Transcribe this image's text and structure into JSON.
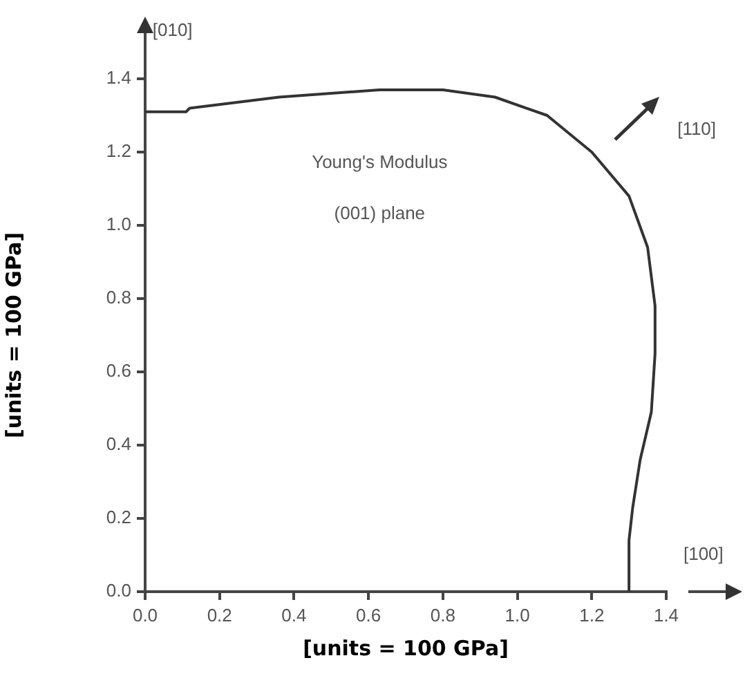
{
  "chart_data": {
    "type": "line",
    "xlabel": "[units = 100 GPa]",
    "ylabel": "[units = 100 GPa]",
    "annotations": [
      "[010]",
      "[110]",
      "[100]",
      "Young's Modulus",
      "(001) plane"
    ],
    "series": [
      {
        "color": "#333333",
        "x": [
          0.0,
          0.11,
          0.12,
          0.36,
          0.63,
          0.8,
          0.94,
          1.08,
          1.2,
          1.3,
          1.35,
          1.37,
          1.37,
          1.36,
          1.33,
          1.31,
          1.3,
          1.3
        ],
        "values": [
          1.31,
          1.31,
          1.32,
          1.35,
          1.37,
          1.37,
          1.35,
          1.3,
          1.2,
          1.08,
          0.94,
          0.78,
          0.65,
          0.49,
          0.36,
          0.23,
          0.14,
          0.0
        ]
      }
    ],
    "xlim": [
      0,
      1.4
    ],
    "xticks": [
      {
        "value": 0,
        "label": "0.0"
      },
      0.2,
      0.4,
      0.6,
      0.8,
      {
        "value": 1,
        "label": "1.0"
      },
      1.2,
      1.4
    ],
    "ylim": [
      0,
      1.4
    ],
    "yticks": [
      {
        "value": 0,
        "label": "0.0"
      },
      0.2,
      0.4,
      0.6,
      0.8,
      {
        "value": 1,
        "label": "1.0"
      },
      1.2,
      1.4
    ],
    "grid": false,
    "legend": false,
    "marker": "none",
    "line_style": "solid"
  }
}
